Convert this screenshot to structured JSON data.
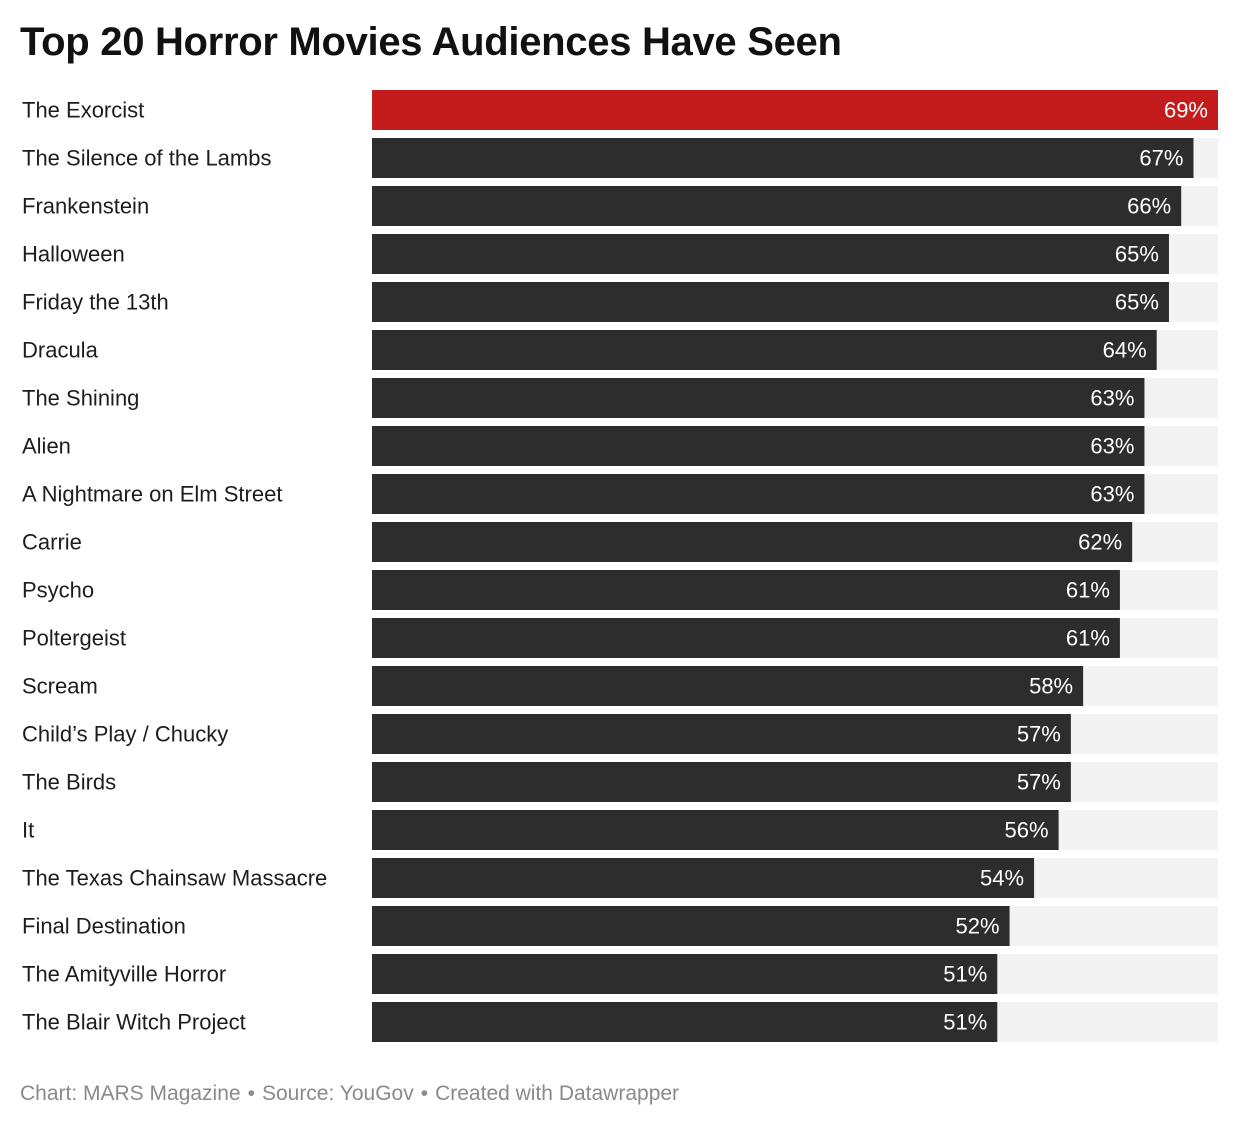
{
  "title": "Top 20 Horror Movies Audiences Have Seen",
  "footer": {
    "chart_credit": "Chart: MARS Magazine",
    "source": "Source: YouGov",
    "tool": "Created with Datawrapper",
    "separator": "•"
  },
  "colors": {
    "highlight": "#c41c1c",
    "bar": "#2d2d2d",
    "track": "#f3f3f3",
    "label": "#1d1d1d",
    "value_label": "#ffffff",
    "footer": "#8a8a8a"
  },
  "chart_data": {
    "type": "bar",
    "orientation": "horizontal",
    "title": "Top 20 Horror Movies Audiences Have Seen",
    "xlabel": "",
    "ylabel": "",
    "xlim": [
      0,
      69
    ],
    "unit": "%",
    "grid": false,
    "highlighted_index": 0,
    "categories": [
      "The Exorcist",
      "The Silence of the Lambs",
      "Frankenstein",
      "Halloween",
      "Friday the 13th",
      "Dracula",
      "The Shining",
      "Alien",
      "A Nightmare on Elm Street",
      "Carrie",
      "Psycho",
      "Poltergeist",
      "Scream",
      "Child’s Play / Chucky",
      "The Birds",
      "It",
      "The Texas Chainsaw Massacre",
      "Final Destination",
      "The Amityville Horror",
      "The Blair Witch Project"
    ],
    "values": [
      69,
      67,
      66,
      65,
      65,
      64,
      63,
      63,
      63,
      62,
      61,
      61,
      58,
      57,
      57,
      56,
      54,
      52,
      51,
      51
    ],
    "value_labels": [
      "69%",
      "67%",
      "66%",
      "65%",
      "65%",
      "64%",
      "63%",
      "63%",
      "63%",
      "62%",
      "61%",
      "61%",
      "58%",
      "57%",
      "57%",
      "56%",
      "54%",
      "52%",
      "51%",
      "51%"
    ]
  }
}
